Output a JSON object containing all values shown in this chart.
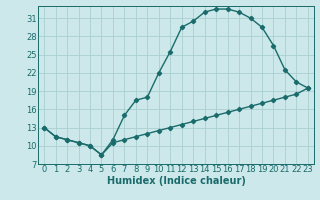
{
  "xlabel": "Humidex (Indice chaleur)",
  "background_color": "#cce8ea",
  "grid_color": "#aacfd2",
  "line_color": "#1a6b6b",
  "xlim": [
    -0.5,
    23.5
  ],
  "ylim": [
    7,
    33
  ],
  "xticks": [
    0,
    1,
    2,
    3,
    4,
    5,
    6,
    7,
    8,
    9,
    10,
    11,
    12,
    13,
    14,
    15,
    16,
    17,
    18,
    19,
    20,
    21,
    22,
    23
  ],
  "yticks": [
    7,
    10,
    13,
    16,
    19,
    22,
    25,
    28,
    31
  ],
  "line1_x": [
    0,
    1,
    2,
    3,
    4,
    5,
    6,
    7,
    8,
    9,
    10,
    11,
    12,
    13,
    14,
    15,
    16,
    17,
    18,
    19,
    20,
    21,
    22,
    23
  ],
  "line1_y": [
    13,
    11.5,
    11,
    10.5,
    10,
    8.5,
    11,
    15,
    17.5,
    18,
    22,
    25.5,
    29.5,
    30.5,
    32,
    32.5,
    32.5,
    32,
    31,
    29.5,
    26.5,
    22.5,
    20.5,
    19.5
  ],
  "line2_x": [
    0,
    1,
    2,
    3,
    4,
    5,
    6,
    7,
    8,
    9,
    10,
    11,
    12,
    13,
    14,
    15,
    16,
    17,
    18,
    19,
    20,
    21,
    22,
    23
  ],
  "line2_y": [
    13,
    11.5,
    11,
    10.5,
    10,
    8.5,
    10.5,
    11,
    11.5,
    12,
    12.5,
    13,
    13.5,
    14,
    14.5,
    15,
    15.5,
    16,
    16.5,
    17,
    17.5,
    18,
    18.5,
    19.5
  ],
  "marker": "D",
  "marker_size": 2.2,
  "line_width": 1.0,
  "xlabel_fontsize": 7,
  "tick_fontsize": 6
}
